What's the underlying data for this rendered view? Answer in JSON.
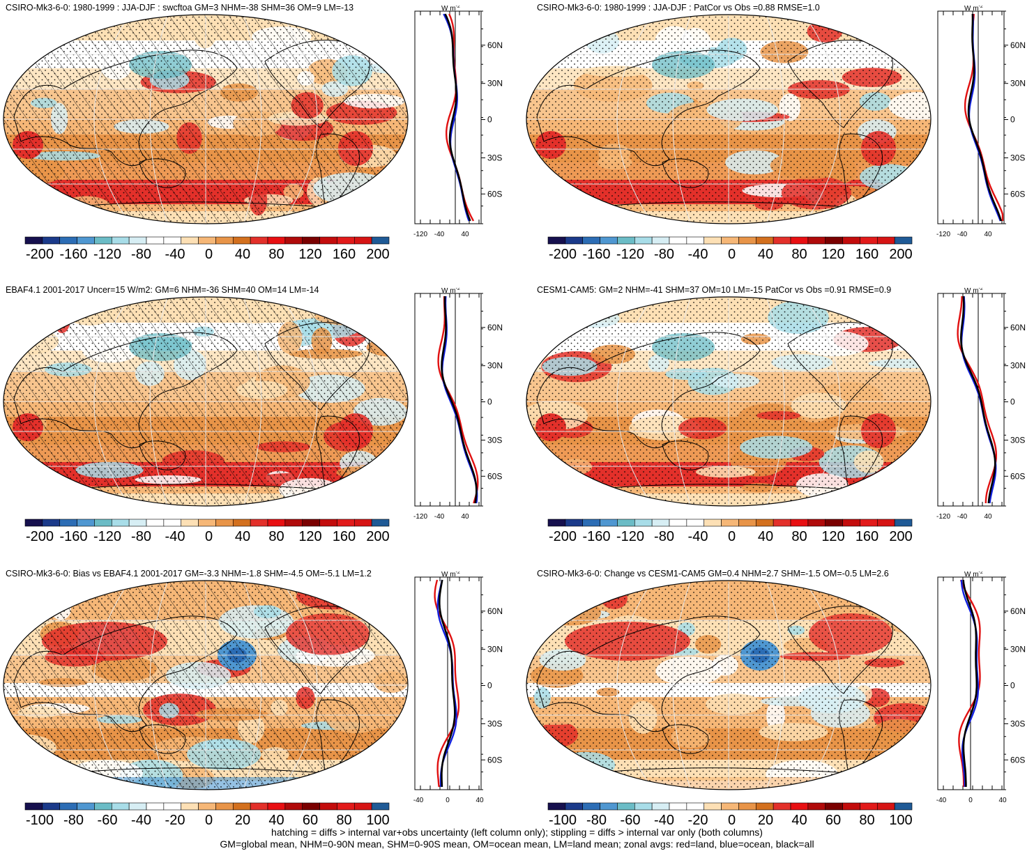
{
  "panels": [
    {
      "title": "CSIRO-Mk3-6-0: 1980-1999 : JJA-DJF : swcftoa GM=3 NHM=-38 SHM=36 OM=9 LM=-13",
      "hatching": true,
      "scale": "abs",
      "zonal_ticks": [
        "-120",
        "-40",
        "40"
      ],
      "lat_labels": [
        "60N",
        "30N",
        "0",
        "30S",
        "60S"
      ]
    },
    {
      "title": "CSIRO-Mk3-6-0: 1980-1999 : JJA-DJF : PatCor vs Obs =0.88 RMSE=1.0",
      "hatching": false,
      "scale": "abs",
      "zonal_ticks": [
        "-120",
        "-40",
        "40"
      ],
      "lat_labels": [
        "60N",
        "30N",
        "0",
        "30S",
        "60S"
      ]
    },
    {
      "title": "EBAF4.1 2001-2017 Uncer=15 W/m2: GM=6 NHM=-36 SHM=40 OM=14 LM=-14",
      "hatching": true,
      "scale": "abs",
      "zonal_ticks": [
        "-120",
        "-40",
        "40"
      ],
      "lat_labels": [
        "60N",
        "30N",
        "0",
        "30S",
        "60S"
      ]
    },
    {
      "title": "CESM1-CAM5: GM=2 NHM=-41 SHM=37 OM=10 LM=-15 PatCor vs Obs =0.91 RMSE=0.9",
      "hatching": false,
      "scale": "abs",
      "zonal_ticks": [
        "-120",
        "-40",
        "40"
      ],
      "lat_labels": [
        "60N",
        "30N",
        "0",
        "30S",
        "60S"
      ]
    },
    {
      "title": "CSIRO-Mk3-6-0: Bias vs EBAF4.1 2001-2017 GM=-3.3 NHM=-1.8 SHM=-4.5 OM=-5.1 LM=1.2",
      "hatching": true,
      "scale": "diff",
      "zonal_ticks": [
        "-40",
        "0",
        "40"
      ],
      "lat_labels": [
        "60N",
        "30N",
        "0",
        "30S",
        "60S"
      ]
    },
    {
      "title": "CSIRO-Mk3-6-0: Change vs CESM1-CAM5 GM=0.4 NHM=2.7 SHM=-1.5 OM=-0.5 LM=2.6",
      "hatching": false,
      "scale": "diff",
      "zonal_ticks": [
        "-40",
        "0",
        "40"
      ],
      "lat_labels": [
        "60N",
        "30N",
        "0",
        "30S",
        "60S"
      ]
    }
  ],
  "zonal_units": "W m",
  "zonal_units_sup": "-2",
  "colorbars": {
    "abs": {
      "labels": [
        "-200",
        "-160",
        "-120",
        "-80",
        "-40",
        "0",
        "40",
        "80",
        "120",
        "160",
        "200"
      ],
      "colors": [
        "#16104e",
        "#1b3a8a",
        "#2c6db5",
        "#4f97d1",
        "#6bbcc6",
        "#a8dde8",
        "#d7eef4",
        "#ffffff",
        "#ffffff",
        "#fde0b5",
        "#f6b777",
        "#e89448",
        "#d3701e",
        "#e3302a",
        "#e80f12",
        "#b00a0a",
        "#7a0000",
        "#c30c0c",
        "#e21a1a",
        "#d61414",
        "#1f5a96"
      ]
    },
    "diff": {
      "labels": [
        "-100",
        "-80",
        "-60",
        "-40",
        "-20",
        "0",
        "20",
        "40",
        "60",
        "80",
        "100"
      ],
      "colors": [
        "#16104e",
        "#1b3a8a",
        "#2c6db5",
        "#4f97d1",
        "#6bbcc6",
        "#a8dde8",
        "#d7eef4",
        "#ffffff",
        "#ffffff",
        "#fde0b5",
        "#f6b777",
        "#e89448",
        "#d3701e",
        "#e3302a",
        "#e80f12",
        "#b00a0a",
        "#7a0000",
        "#c30c0c",
        "#e21a1a",
        "#d61414",
        "#1f5a96"
      ]
    }
  },
  "footer": {
    "line1": "hatching = diffs > internal var+obs uncertainty (left column only); stippling = diffs > internal var only (both columns)",
    "line2": "GM=global mean, NHM=0-90N mean, SHM=0-90S mean, OM=ocean mean, LM=land mean; zonal avgs: red=land, blue=ocean, black=all"
  },
  "legend_colors": {
    "land": "#e01010",
    "ocean": "#1020e0",
    "all": "#000000"
  }
}
